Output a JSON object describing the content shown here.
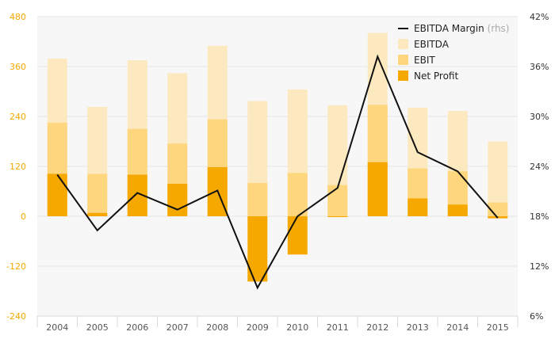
{
  "chart_data": {
    "type": "bar",
    "categories": [
      "2004",
      "2005",
      "2006",
      "2007",
      "2008",
      "2009",
      "2010",
      "2011",
      "2012",
      "2013",
      "2014",
      "2015"
    ],
    "series": [
      {
        "name": "EBITDA",
        "type": "bar",
        "axis": "left",
        "color": "#fde9c0",
        "values": [
          379,
          263,
          375,
          344,
          410,
          277,
          305,
          267,
          441,
          261,
          253,
          180
        ]
      },
      {
        "name": "EBIT",
        "type": "bar",
        "axis": "left",
        "color": "#fdd67e",
        "values": [
          225,
          102,
          210,
          175,
          233,
          80,
          104,
          75,
          268,
          115,
          108,
          33
        ]
      },
      {
        "name": "Net Profit",
        "type": "bar",
        "axis": "left",
        "color": "#f5a800",
        "values": [
          102,
          8,
          100,
          78,
          118,
          -157,
          -92,
          -2,
          130,
          43,
          28,
          -5
        ]
      },
      {
        "name": "EBITDA Margin",
        "name_suffix": "(rhs)",
        "type": "line",
        "axis": "right",
        "color": "#111111",
        "values": [
          23.0,
          16.3,
          20.8,
          18.8,
          21.1,
          9.4,
          18.0,
          21.4,
          37.2,
          25.7,
          23.4,
          17.8
        ]
      }
    ],
    "y_left": {
      "ylim": [
        -240,
        480
      ],
      "ticks": [
        "480",
        "360",
        "240",
        "120",
        "0",
        "-120",
        "-240"
      ]
    },
    "y_right": {
      "ylim": [
        6,
        42
      ],
      "ticks": [
        "42%",
        "36%",
        "30%",
        "24%",
        "18%",
        "12%",
        "6%"
      ]
    },
    "legend_position": "top-right",
    "grid": "horizontal"
  }
}
